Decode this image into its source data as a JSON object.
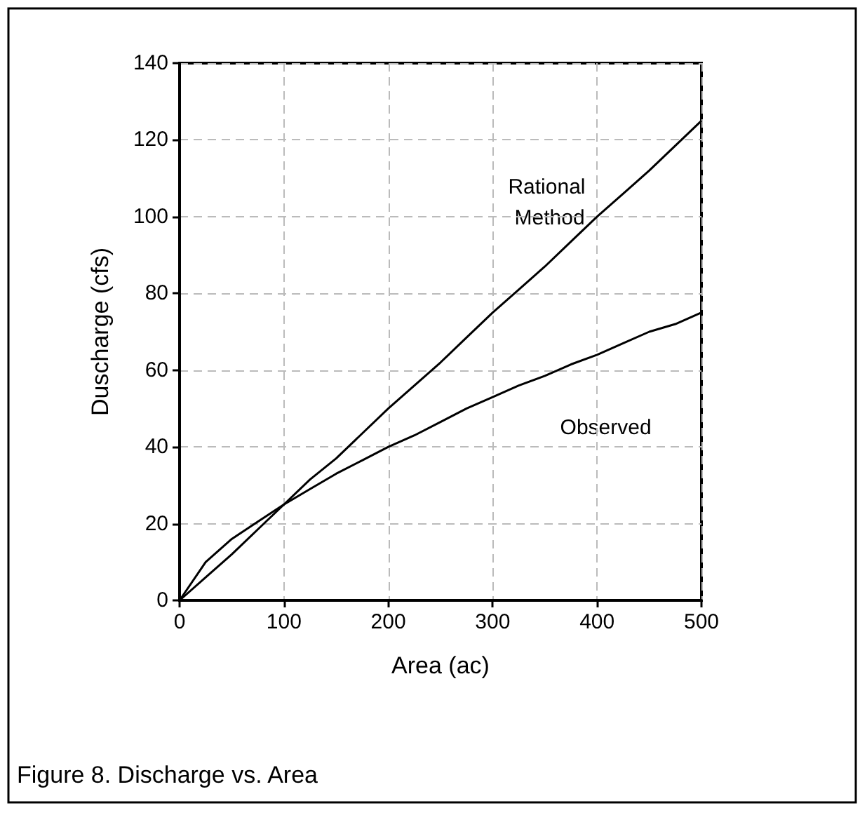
{
  "chart_data": {
    "type": "line",
    "xlabel": "Area (ac)",
    "ylabel": "Duscharge (cfs)",
    "x": [
      0,
      25,
      50,
      75,
      100,
      125,
      150,
      175,
      200,
      225,
      250,
      275,
      300,
      325,
      350,
      375,
      400,
      425,
      450,
      475,
      500
    ],
    "series": [
      {
        "name": "Rational Method",
        "color": "#000000",
        "values": [
          0,
          6,
          12,
          18.5,
          25,
          31.5,
          37,
          43.5,
          50,
          56,
          62,
          68.5,
          75,
          81,
          87,
          93.5,
          100,
          106,
          112,
          118.5,
          125
        ]
      },
      {
        "name": "Observed",
        "color": "#000000",
        "values": [
          0,
          10,
          16,
          20.5,
          25,
          29,
          33,
          36.5,
          40,
          43,
          46.5,
          50,
          53,
          56,
          58.5,
          61.5,
          64,
          67,
          70,
          72,
          75
        ]
      }
    ],
    "xlim": [
      0,
      500
    ],
    "xticks": [
      0,
      100,
      200,
      300,
      400,
      500
    ],
    "ylim": [
      0,
      140
    ],
    "yticks": [
      0,
      20,
      40,
      60,
      80,
      100,
      120,
      140
    ],
    "grid": true,
    "legend": false,
    "marker": "none",
    "line_style": "solid",
    "annotations": [
      "Figure 8. Discharge vs. Area"
    ]
  }
}
